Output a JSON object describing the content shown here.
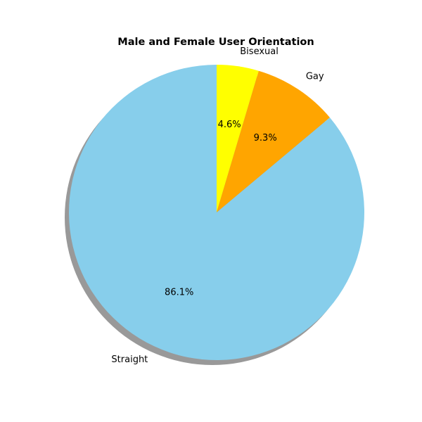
{
  "chart_data": {
    "type": "pie",
    "title": "Male and Female User Orientation",
    "slices": [
      {
        "label": "Bisexual",
        "value": 4.6,
        "pct_label": "4.6%",
        "color": "#ffff00"
      },
      {
        "label": "Gay",
        "value": 9.3,
        "pct_label": "9.3%",
        "color": "#ffa500"
      },
      {
        "label": "Straight",
        "value": 86.1,
        "pct_label": "86.1%",
        "color": "#87ceeb"
      }
    ],
    "start_angle": 90,
    "direction": "clockwise",
    "shadow": true,
    "shadow_color": "#999999"
  }
}
